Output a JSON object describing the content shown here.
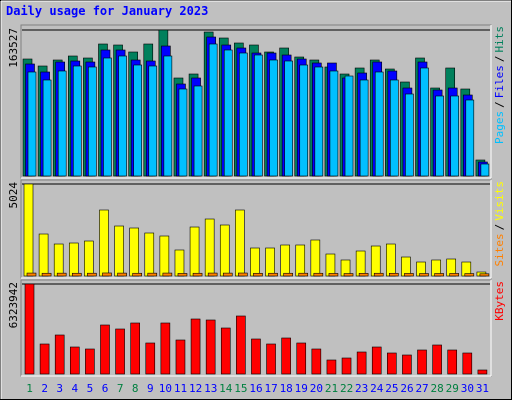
{
  "title": "Daily usage for January 2023",
  "legend_separator": "/",
  "chart_data": [
    {
      "type": "bar",
      "ylim": [
        0,
        163527
      ],
      "yticks": [
        163527
      ],
      "series": [
        {
          "name": "Hits",
          "color": "#00805c",
          "values": [
            131040,
            123200,
            129920,
            134400,
            132160,
            147840,
            146720,
            138880,
            147840,
            163527,
            109760,
            114240,
            161280,
            154560,
            148960,
            146720,
            138880,
            143360,
            133280,
            129920,
            122080,
            114240,
            120960,
            129920,
            119840,
            105280,
            132160,
            98560,
            120960,
            97440,
            17920
          ]
        },
        {
          "name": "Files",
          "color": "#0000ff",
          "values": [
            125440,
            116480,
            127680,
            128800,
            127680,
            141120,
            141120,
            129920,
            128800,
            145600,
            103040,
            109760,
            155680,
            146720,
            143360,
            137760,
            137760,
            135520,
            131040,
            126560,
            126560,
            109760,
            115360,
            127680,
            117600,
            98560,
            127680,
            96320,
            98560,
            90720,
            15680
          ]
        },
        {
          "name": "Pages",
          "color": "#00c0ff",
          "values": [
            116480,
            107520,
            117600,
            123200,
            122080,
            132160,
            134400,
            124320,
            123200,
            134400,
            97440,
            100800,
            147840,
            141120,
            137760,
            135520,
            129920,
            128800,
            124320,
            122080,
            117600,
            112000,
            107520,
            116480,
            107520,
            91840,
            120960,
            89600,
            89600,
            85120,
            13440
          ]
        }
      ]
    },
    {
      "type": "bar",
      "ylim": [
        0,
        5024
      ],
      "yticks": [
        5024
      ],
      "series": [
        {
          "name": "Visits",
          "color": "#ffff00",
          "values": [
            5024,
            2293,
            1747,
            1802,
            1911,
            3604,
            2730,
            2621,
            2348,
            2184,
            1420,
            2675,
            3112,
            2785,
            3604,
            1529,
            1529,
            1693,
            1693,
            1966,
            1201,
            874,
            1365,
            1638,
            1747,
            1037,
            764,
            874,
            928,
            764,
            218
          ]
        },
        {
          "name": "Sites",
          "color": "#ff8000",
          "values": [
            160,
            150,
            155,
            150,
            152,
            165,
            158,
            150,
            155,
            160,
            140,
            150,
            160,
            158,
            162,
            148,
            150,
            150,
            152,
            150,
            140,
            135,
            145,
            150,
            148,
            140,
            135,
            138,
            140,
            132,
            120
          ]
        }
      ]
    },
    {
      "type": "bar",
      "ylim": [
        0,
        6323942
      ],
      "yticks": [
        6323942
      ],
      "categories": [
        "1",
        "2",
        "3",
        "4",
        "5",
        "6",
        "7",
        "8",
        "9",
        "10",
        "11",
        "12",
        "13",
        "14",
        "15",
        "16",
        "17",
        "18",
        "19",
        "20",
        "21",
        "22",
        "23",
        "24",
        "25",
        "26",
        "27",
        "28",
        "29",
        "30",
        "31"
      ],
      "category_colors": [
        "#008040",
        "#0000ff",
        "#0000ff",
        "#0000ff",
        "#0000ff",
        "#0000ff",
        "#008040",
        "#008040",
        "#0000ff",
        "#0000ff",
        "#0000ff",
        "#0000ff",
        "#0000ff",
        "#008040",
        "#008040",
        "#0000ff",
        "#0000ff",
        "#0000ff",
        "#0000ff",
        "#0000ff",
        "#008040",
        "#008040",
        "#0000ff",
        "#0000ff",
        "#0000ff",
        "#0000ff",
        "#0000ff",
        "#008040",
        "#008040",
        "#0000ff",
        "#0000ff"
      ],
      "series": [
        {
          "name": "KBytes",
          "color": "#ff0000",
          "values": [
            6323942,
            2107980,
            2740374,
            1897182,
            1756650,
            3443034,
            3161970,
            3583566,
            2178246,
            3583566,
            2389044,
            3864630,
            3794364,
            3232236,
            4075428,
            2459310,
            2107980,
            2529576,
            2178246,
            1756650,
            983724,
            1124256,
            1545852,
            1897182,
            1475586,
            1335054,
            1686384,
            2037714,
            1686384,
            1475586,
            281064
          ]
        }
      ]
    }
  ]
}
